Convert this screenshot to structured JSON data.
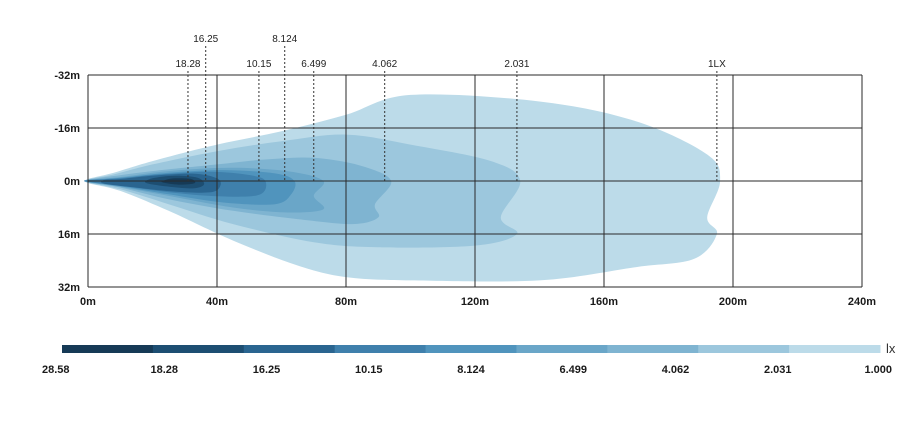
{
  "chart_data": {
    "type": "area",
    "x_axis": {
      "unit": "m",
      "min": 0,
      "max": 240,
      "ticks": [
        {
          "value": 0,
          "label": "0m"
        },
        {
          "value": 40,
          "label": "40m"
        },
        {
          "value": 80,
          "label": "80m"
        },
        {
          "value": 120,
          "label": "120m"
        },
        {
          "value": 160,
          "label": "160m"
        },
        {
          "value": 200,
          "label": "200m"
        },
        {
          "value": 240,
          "label": "240m"
        }
      ]
    },
    "y_axis": {
      "unit": "m",
      "min": -32,
      "max": 32,
      "ticks": [
        {
          "value": -32,
          "label": "-32m"
        },
        {
          "value": -16,
          "label": "-16m"
        },
        {
          "value": 0,
          "label": "0m"
        },
        {
          "value": 16,
          "label": "16m"
        },
        {
          "value": 32,
          "label": "32m"
        }
      ]
    },
    "grid": true,
    "series": [
      {
        "lux": 1.0,
        "color": "#bcdbe9",
        "points": [
          [
            0,
            0.6
          ],
          [
            10,
            3
          ],
          [
            25,
            9
          ],
          [
            45,
            18
          ],
          [
            65,
            25.5
          ],
          [
            80,
            29
          ],
          [
            100,
            30
          ],
          [
            140,
            30
          ],
          [
            170,
            26
          ],
          [
            188,
            23.5
          ],
          [
            195,
            16
          ],
          [
            192,
            11
          ],
          [
            196,
            0
          ],
          [
            192,
            -8
          ],
          [
            170,
            -18
          ],
          [
            140,
            -24
          ],
          [
            100,
            -26
          ],
          [
            80,
            -20
          ],
          [
            60,
            -15
          ],
          [
            40,
            -11
          ],
          [
            20,
            -6
          ],
          [
            8,
            -2.5
          ],
          [
            0,
            -0.6
          ]
        ]
      },
      {
        "lux": 2.031,
        "color": "#9cc7dd",
        "points": [
          [
            0,
            0.5
          ],
          [
            10,
            2.5
          ],
          [
            25,
            7
          ],
          [
            45,
            13
          ],
          [
            70,
            18.5
          ],
          [
            90,
            20
          ],
          [
            120,
            19.5
          ],
          [
            133,
            16
          ],
          [
            128,
            11
          ],
          [
            134,
            0
          ],
          [
            125,
            -6
          ],
          [
            100,
            -11
          ],
          [
            80,
            -14
          ],
          [
            60,
            -12
          ],
          [
            40,
            -9
          ],
          [
            20,
            -5
          ],
          [
            8,
            -2
          ],
          [
            0,
            -0.5
          ]
        ]
      },
      {
        "lux": 4.062,
        "color": "#7fb4d1",
        "points": [
          [
            0,
            0.4
          ],
          [
            10,
            2
          ],
          [
            25,
            5.5
          ],
          [
            45,
            9
          ],
          [
            65,
            11.5
          ],
          [
            82,
            13
          ],
          [
            90,
            11
          ],
          [
            89,
            7
          ],
          [
            94,
            0
          ],
          [
            85,
            -4.5
          ],
          [
            70,
            -7
          ],
          [
            55,
            -6.5
          ],
          [
            40,
            -5
          ],
          [
            20,
            -3
          ],
          [
            8,
            -1.5
          ],
          [
            0,
            -0.4
          ]
        ]
      },
      {
        "lux": 6.499,
        "color": "#6aa6c8",
        "points": [
          [
            0,
            0.35
          ],
          [
            10,
            1.8
          ],
          [
            25,
            4.5
          ],
          [
            45,
            8
          ],
          [
            62,
            9.5
          ],
          [
            73,
            8.5
          ],
          [
            70,
            4.5
          ],
          [
            73,
            0
          ],
          [
            63,
            -2.8
          ],
          [
            45,
            -4
          ],
          [
            25,
            -3
          ],
          [
            10,
            -1.2
          ],
          [
            0,
            -0.35
          ]
        ]
      },
      {
        "lux": 8.124,
        "color": "#5094bd",
        "points": [
          [
            0,
            0.3
          ],
          [
            10,
            1.6
          ],
          [
            25,
            4
          ],
          [
            42,
            6.5
          ],
          [
            58,
            7
          ],
          [
            63,
            4
          ],
          [
            64,
            0
          ],
          [
            58,
            -2.3
          ],
          [
            42,
            -3.3
          ],
          [
            25,
            -2.5
          ],
          [
            10,
            -1
          ],
          [
            0,
            -0.3
          ]
        ]
      },
      {
        "lux": 10.15,
        "color": "#3f80ac",
        "points": [
          [
            0,
            0.25
          ],
          [
            10,
            1.4
          ],
          [
            25,
            3.4
          ],
          [
            40,
            4.6
          ],
          [
            53,
            4.2
          ],
          [
            55,
            0
          ],
          [
            50,
            -1.8
          ],
          [
            38,
            -2.8
          ],
          [
            22,
            -2
          ],
          [
            10,
            -0.8
          ],
          [
            0,
            -0.25
          ]
        ]
      },
      {
        "lux": 16.25,
        "color": "#2a6590",
        "points": [
          [
            5,
            0.8
          ],
          [
            15,
            2
          ],
          [
            27,
            3.2
          ],
          [
            38,
            3.4
          ],
          [
            41,
            1.5
          ],
          [
            40,
            -0.8
          ],
          [
            33,
            -2.2
          ],
          [
            20,
            -1.6
          ],
          [
            10,
            -0.6
          ],
          [
            5,
            -0.3
          ]
        ]
      },
      {
        "lux": 18.28,
        "color": "#1d4e72",
        "points": [
          [
            18,
            0.6
          ],
          [
            26,
            1.8
          ],
          [
            33,
            2.2
          ],
          [
            36,
            1
          ],
          [
            34,
            -1
          ],
          [
            27,
            -1.6
          ],
          [
            20,
            -0.8
          ]
        ]
      },
      {
        "lux": 28.58,
        "color": "#163a56",
        "points": [
          [
            23,
            0.4
          ],
          [
            28,
            1.1
          ],
          [
            33,
            0.7
          ],
          [
            32,
            -0.6
          ],
          [
            27,
            -0.8
          ],
          [
            24,
            -0.3
          ]
        ]
      }
    ],
    "markers": [
      {
        "label": "18.28",
        "x": 31,
        "row": 2
      },
      {
        "label": "16.25",
        "x": 36.5,
        "row": 1
      },
      {
        "label": "10.15",
        "x": 53,
        "row": 2
      },
      {
        "label": "8.124",
        "x": 61,
        "row": 1
      },
      {
        "label": "6.499",
        "x": 70,
        "row": 2
      },
      {
        "label": "4.062",
        "x": 92,
        "row": 2
      },
      {
        "label": "2.031",
        "x": 133,
        "row": 2
      },
      {
        "label": "1LX",
        "x": 195,
        "row": 2
      }
    ],
    "color_scale": {
      "unit": "lx",
      "labels": [
        "28.58",
        "18.28",
        "16.25",
        "10.15",
        "8.124",
        "6.499",
        "4.062",
        "2.031",
        "1.000"
      ],
      "colors": [
        "#163a56",
        "#1d4e72",
        "#2a6590",
        "#3f80ac",
        "#5094bd",
        "#6aa6c8",
        "#7fb4d1",
        "#9cc7dd",
        "#bcdbe9"
      ]
    }
  }
}
